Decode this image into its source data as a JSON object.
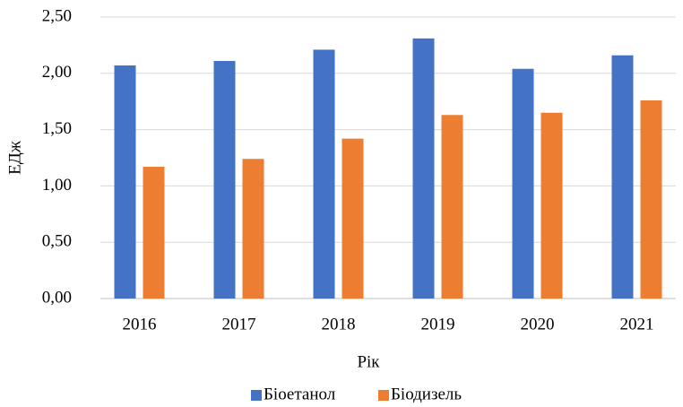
{
  "chart_data": {
    "type": "bar",
    "categories": [
      "2016",
      "2017",
      "2018",
      "2019",
      "2020",
      "2021"
    ],
    "series": [
      {
        "name": "Біоетанол",
        "color": "#4472c4",
        "values": [
          2.07,
          2.11,
          2.21,
          2.31,
          2.04,
          2.16
        ]
      },
      {
        "name": "Біодизель",
        "color": "#ed7d31",
        "values": [
          1.17,
          1.24,
          1.42,
          1.63,
          1.65,
          1.76
        ]
      }
    ],
    "x_label": "Рік",
    "y_label": "ЕДж",
    "ylim": [
      0,
      2.5
    ],
    "yticks": [
      {
        "value": 0,
        "label": "0,00"
      },
      {
        "value": 0.5,
        "label": "0,50"
      },
      {
        "value": 1,
        "label": "1,00"
      },
      {
        "value": 1.5,
        "label": "1,50"
      },
      {
        "value": 2,
        "label": "2,00"
      },
      {
        "value": 2.5,
        "label": "2,50"
      }
    ],
    "grid": true,
    "legend": "bottom"
  }
}
